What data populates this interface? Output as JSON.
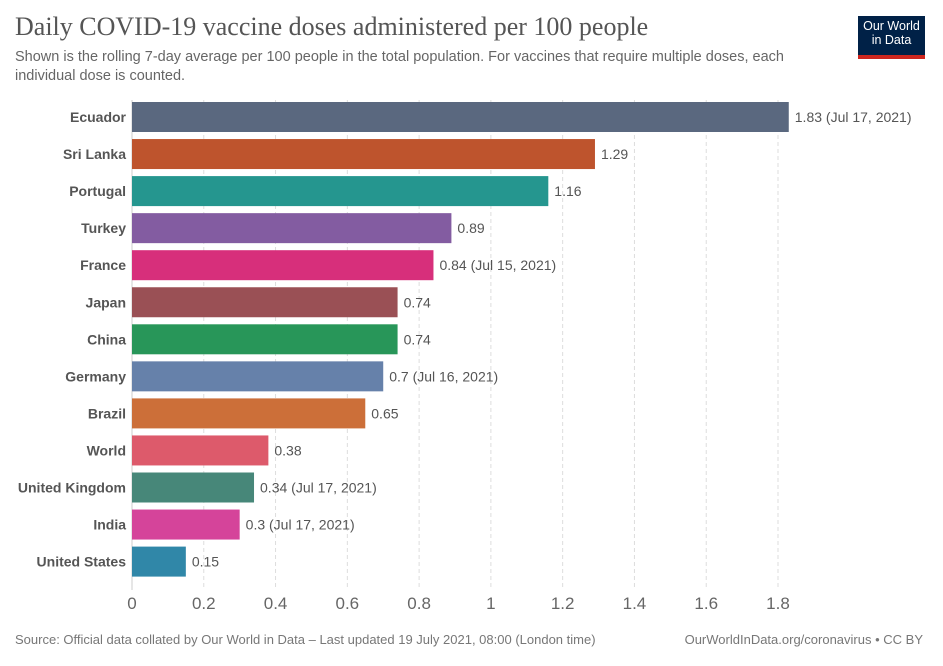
{
  "header": {
    "title": "Daily COVID-19 vaccine doses administered per 100 people",
    "subtitle": "Shown is the rolling 7-day average per 100 people in the total population. For vaccines that require multiple doses, each individual dose is counted.",
    "logo_line1": "Our World",
    "logo_line2": "in Data"
  },
  "footer": {
    "source": "Source: Official data collated by Our World in Data – Last updated 19 July 2021, 08:00 (London time)",
    "link": "OurWorldInData.org/coronavirus • CC BY"
  },
  "colors": {
    "brand_navy": "#002147",
    "brand_red": "#ce261e"
  },
  "chart_data": {
    "type": "bar",
    "orientation": "horizontal",
    "title": "Daily COVID-19 vaccine doses administered per 100 people",
    "xlabel": "",
    "ylabel": "",
    "xlim": [
      0,
      1.83
    ],
    "xticks": [
      0,
      0.2,
      0.4,
      0.6,
      0.8,
      1,
      1.2,
      1.4,
      1.6,
      1.8
    ],
    "xtick_labels": [
      "0",
      "0.2",
      "0.4",
      "0.6",
      "0.8",
      "1",
      "1.2",
      "1.4",
      "1.6",
      "1.8"
    ],
    "grid": "vertical-dashed",
    "legend": "none",
    "categories": [
      "Ecuador",
      "Sri Lanka",
      "Portugal",
      "Turkey",
      "France",
      "Japan",
      "China",
      "Germany",
      "Brazil",
      "World",
      "United Kingdom",
      "India",
      "United States"
    ],
    "values": [
      1.83,
      1.29,
      1.16,
      0.89,
      0.84,
      0.74,
      0.74,
      0.7,
      0.65,
      0.38,
      0.34,
      0.3,
      0.15
    ],
    "value_labels": [
      "1.83 (Jul 17, 2021)",
      "1.29",
      "1.16",
      "0.89",
      "0.84 (Jul 15, 2021)",
      "0.74",
      "0.74",
      "0.7 (Jul 16, 2021)",
      "0.65",
      "0.38",
      "0.34 (Jul 17, 2021)",
      "0.3 (Jul 17, 2021)",
      "0.15"
    ],
    "bar_colors": [
      "#5a687f",
      "#be542d",
      "#25968f",
      "#835ca1",
      "#d72f7b",
      "#9a5055",
      "#289659",
      "#6681aa",
      "#cc6f39",
      "#dd5a6b",
      "#478779",
      "#d5449a",
      "#3087a8"
    ]
  }
}
